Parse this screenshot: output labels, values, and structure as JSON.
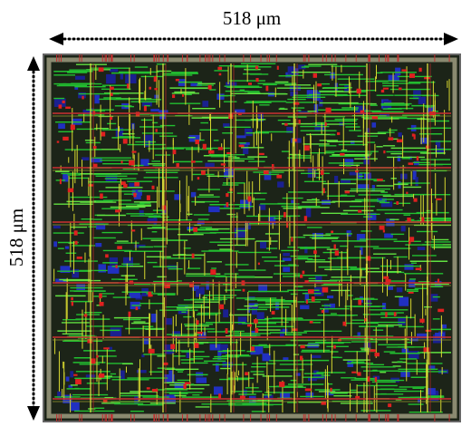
{
  "labels": {
    "width": "518 μm",
    "height": "518 μm"
  }
}
